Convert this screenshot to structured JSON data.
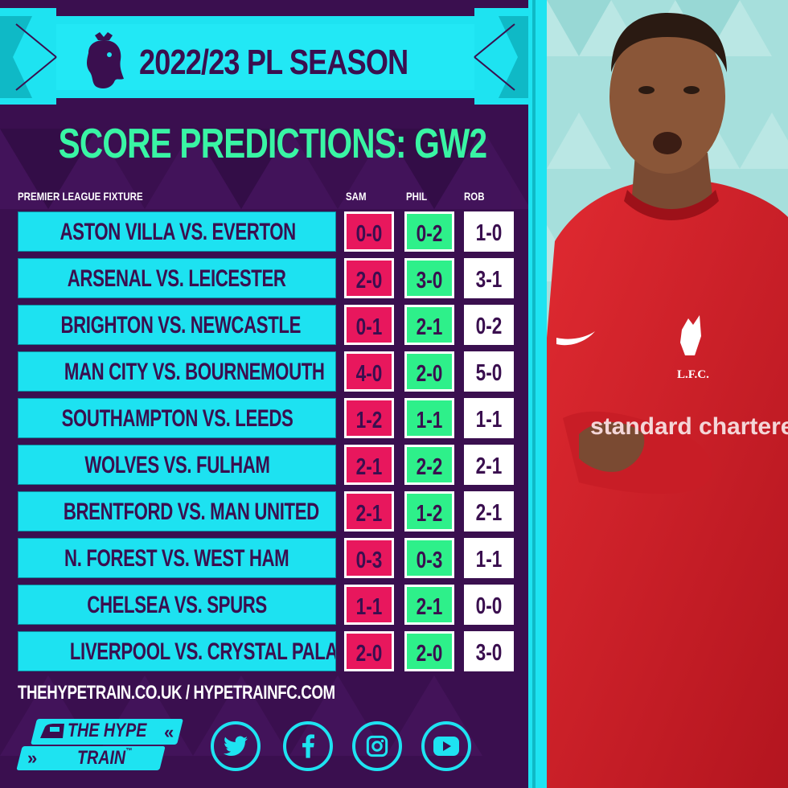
{
  "banner": {
    "title": "2022/23 PL SEASON"
  },
  "subtitle": "SCORE PREDICTIONS: GW2",
  "headers": {
    "fixture": "PREMIER LEAGUE FIXTURE",
    "sam": "SAM",
    "phil": "PHIL",
    "rob": "ROB"
  },
  "rows": [
    {
      "fixture": "ASTON VILLA VS. EVERTON",
      "sam": "0-0",
      "phil": "0-2",
      "rob": "1-0"
    },
    {
      "fixture": "ARSENAL VS. LEICESTER",
      "sam": "2-0",
      "phil": "3-0",
      "rob": "3-1"
    },
    {
      "fixture": "BRIGHTON VS. NEWCASTLE",
      "sam": "0-1",
      "phil": "2-1",
      "rob": "0-2"
    },
    {
      "fixture": "MAN CITY VS. BOURNEMOUTH",
      "sam": "4-0",
      "phil": "2-0",
      "rob": "5-0"
    },
    {
      "fixture": "SOUTHAMPTON VS. LEEDS",
      "sam": "1-2",
      "phil": "1-1",
      "rob": "1-1"
    },
    {
      "fixture": "WOLVES VS. FULHAM",
      "sam": "2-1",
      "phil": "2-2",
      "rob": "2-1"
    },
    {
      "fixture": "BRENTFORD VS. MAN UNITED",
      "sam": "2-1",
      "phil": "1-2",
      "rob": "2-1"
    },
    {
      "fixture": "N. FOREST VS. WEST HAM",
      "sam": "0-3",
      "phil": "0-3",
      "rob": "1-1"
    },
    {
      "fixture": "CHELSEA VS. SPURS",
      "sam": "1-1",
      "phil": "2-1",
      "rob": "0-0"
    },
    {
      "fixture": "LIVERPOOL VS. CRYSTAL PALACE",
      "sam": "2-0",
      "phil": "2-0",
      "rob": "3-0"
    }
  ],
  "footer": {
    "url": "THEHYPETRAIN.CO.UK / HYPETRAINFC.COM"
  },
  "brand": {
    "line1": "THE HYPE",
    "line2": "TRAIN",
    "trademark": "™"
  },
  "social": [
    "twitter-icon",
    "facebook-icon",
    "instagram-icon",
    "youtube-icon"
  ],
  "photo": {
    "shirt_text": "standard chartered",
    "crest_text": "L.F.C."
  },
  "colors": {
    "purple": "#3a0f4f",
    "cyan": "#1ee3f1",
    "green": "#39f5a4",
    "sam": "#e8175d",
    "phil": "#2ef08a",
    "rob": "#ffffff",
    "shirt": "#d6202a"
  }
}
